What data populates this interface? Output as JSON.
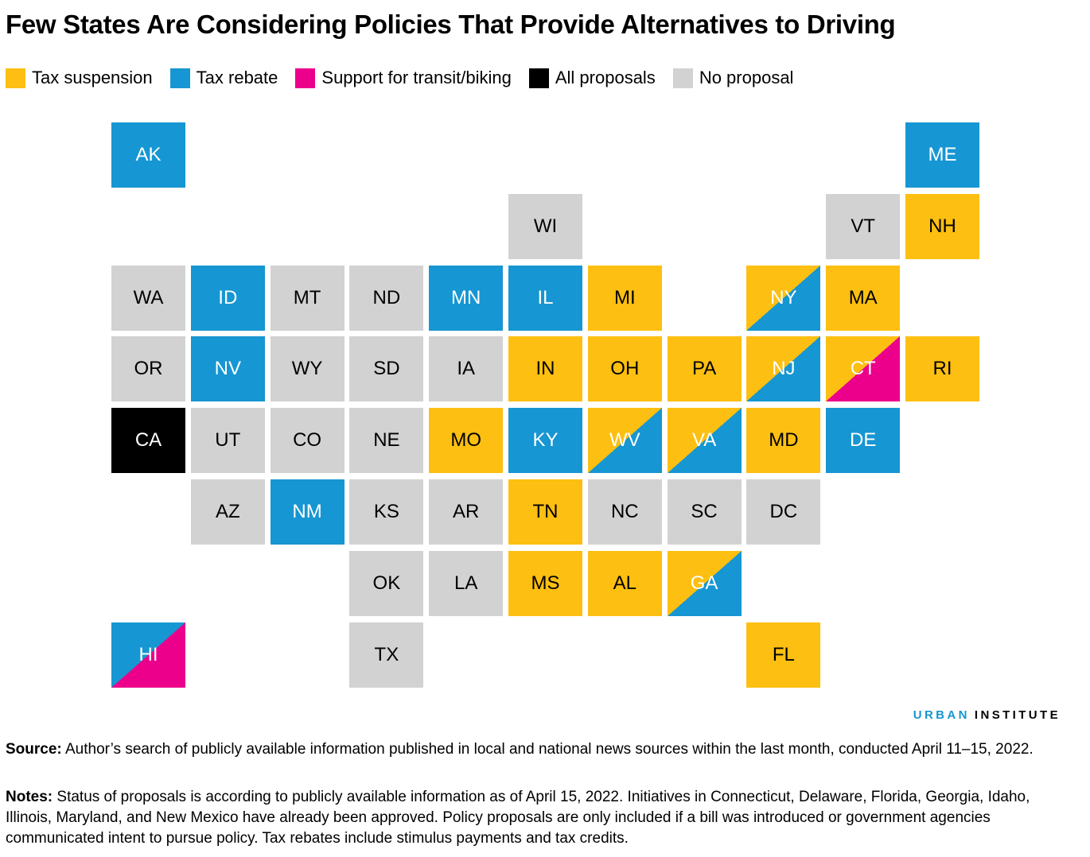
{
  "title": "Few States Are Considering Policies That Provide Alternatives to Driving",
  "colors": {
    "suspension": "#fdbf11",
    "rebate": "#1696d2",
    "transit": "#ec008b",
    "all": "#000000",
    "none": "#d2d2d2"
  },
  "legend": [
    {
      "key": "suspension",
      "label": "Tax suspension"
    },
    {
      "key": "rebate",
      "label": "Tax rebate"
    },
    {
      "key": "transit",
      "label": "Support for transit/biking"
    },
    {
      "key": "all",
      "label": "All proposals"
    },
    {
      "key": "none",
      "label": "No proposal"
    }
  ],
  "states": [
    {
      "abbr": "AK",
      "col": 0,
      "row": 0,
      "policies": [
        "rebate"
      ]
    },
    {
      "abbr": "ME",
      "col": 10,
      "row": 0,
      "policies": [
        "rebate"
      ]
    },
    {
      "abbr": "WI",
      "col": 5,
      "row": 1,
      "policies": [
        "none"
      ]
    },
    {
      "abbr": "VT",
      "col": 9,
      "row": 1,
      "policies": [
        "none"
      ]
    },
    {
      "abbr": "NH",
      "col": 10,
      "row": 1,
      "policies": [
        "suspension"
      ]
    },
    {
      "abbr": "WA",
      "col": 0,
      "row": 2,
      "policies": [
        "none"
      ]
    },
    {
      "abbr": "ID",
      "col": 1,
      "row": 2,
      "policies": [
        "rebate"
      ]
    },
    {
      "abbr": "MT",
      "col": 2,
      "row": 2,
      "policies": [
        "none"
      ]
    },
    {
      "abbr": "ND",
      "col": 3,
      "row": 2,
      "policies": [
        "none"
      ]
    },
    {
      "abbr": "MN",
      "col": 4,
      "row": 2,
      "policies": [
        "rebate"
      ]
    },
    {
      "abbr": "IL",
      "col": 5,
      "row": 2,
      "policies": [
        "rebate"
      ]
    },
    {
      "abbr": "MI",
      "col": 6,
      "row": 2,
      "policies": [
        "suspension"
      ]
    },
    {
      "abbr": "NY",
      "col": 8,
      "row": 2,
      "policies": [
        "suspension",
        "rebate"
      ]
    },
    {
      "abbr": "MA",
      "col": 9,
      "row": 2,
      "policies": [
        "suspension"
      ]
    },
    {
      "abbr": "OR",
      "col": 0,
      "row": 3,
      "policies": [
        "none"
      ]
    },
    {
      "abbr": "NV",
      "col": 1,
      "row": 3,
      "policies": [
        "rebate"
      ]
    },
    {
      "abbr": "WY",
      "col": 2,
      "row": 3,
      "policies": [
        "none"
      ]
    },
    {
      "abbr": "SD",
      "col": 3,
      "row": 3,
      "policies": [
        "none"
      ]
    },
    {
      "abbr": "IA",
      "col": 4,
      "row": 3,
      "policies": [
        "none"
      ]
    },
    {
      "abbr": "IN",
      "col": 5,
      "row": 3,
      "policies": [
        "suspension"
      ]
    },
    {
      "abbr": "OH",
      "col": 6,
      "row": 3,
      "policies": [
        "suspension"
      ]
    },
    {
      "abbr": "PA",
      "col": 7,
      "row": 3,
      "policies": [
        "suspension"
      ]
    },
    {
      "abbr": "NJ",
      "col": 8,
      "row": 3,
      "policies": [
        "suspension",
        "rebate"
      ]
    },
    {
      "abbr": "CT",
      "col": 9,
      "row": 3,
      "policies": [
        "suspension",
        "transit"
      ]
    },
    {
      "abbr": "RI",
      "col": 10,
      "row": 3,
      "policies": [
        "suspension"
      ]
    },
    {
      "abbr": "CA",
      "col": 0,
      "row": 4,
      "policies": [
        "all"
      ]
    },
    {
      "abbr": "UT",
      "col": 1,
      "row": 4,
      "policies": [
        "none"
      ]
    },
    {
      "abbr": "CO",
      "col": 2,
      "row": 4,
      "policies": [
        "none"
      ]
    },
    {
      "abbr": "NE",
      "col": 3,
      "row": 4,
      "policies": [
        "none"
      ]
    },
    {
      "abbr": "MO",
      "col": 4,
      "row": 4,
      "policies": [
        "suspension"
      ]
    },
    {
      "abbr": "KY",
      "col": 5,
      "row": 4,
      "policies": [
        "rebate"
      ]
    },
    {
      "abbr": "WV",
      "col": 6,
      "row": 4,
      "policies": [
        "suspension",
        "rebate"
      ]
    },
    {
      "abbr": "VA",
      "col": 7,
      "row": 4,
      "policies": [
        "suspension",
        "rebate"
      ]
    },
    {
      "abbr": "MD",
      "col": 8,
      "row": 4,
      "policies": [
        "suspension"
      ]
    },
    {
      "abbr": "DE",
      "col": 9,
      "row": 4,
      "policies": [
        "rebate"
      ]
    },
    {
      "abbr": "AZ",
      "col": 1,
      "row": 5,
      "policies": [
        "none"
      ]
    },
    {
      "abbr": "NM",
      "col": 2,
      "row": 5,
      "policies": [
        "rebate"
      ]
    },
    {
      "abbr": "KS",
      "col": 3,
      "row": 5,
      "policies": [
        "none"
      ]
    },
    {
      "abbr": "AR",
      "col": 4,
      "row": 5,
      "policies": [
        "none"
      ]
    },
    {
      "abbr": "TN",
      "col": 5,
      "row": 5,
      "policies": [
        "suspension"
      ]
    },
    {
      "abbr": "NC",
      "col": 6,
      "row": 5,
      "policies": [
        "none"
      ]
    },
    {
      "abbr": "SC",
      "col": 7,
      "row": 5,
      "policies": [
        "none"
      ]
    },
    {
      "abbr": "DC",
      "col": 8,
      "row": 5,
      "policies": [
        "none"
      ]
    },
    {
      "abbr": "OK",
      "col": 3,
      "row": 6,
      "policies": [
        "none"
      ]
    },
    {
      "abbr": "LA",
      "col": 4,
      "row": 6,
      "policies": [
        "none"
      ]
    },
    {
      "abbr": "MS",
      "col": 5,
      "row": 6,
      "policies": [
        "suspension"
      ]
    },
    {
      "abbr": "AL",
      "col": 6,
      "row": 6,
      "policies": [
        "suspension"
      ]
    },
    {
      "abbr": "GA",
      "col": 7,
      "row": 6,
      "policies": [
        "suspension",
        "rebate"
      ]
    },
    {
      "abbr": "HI",
      "col": 0,
      "row": 7,
      "policies": [
        "rebate",
        "transit"
      ]
    },
    {
      "abbr": "TX",
      "col": 3,
      "row": 7,
      "policies": [
        "none"
      ]
    },
    {
      "abbr": "FL",
      "col": 8,
      "row": 7,
      "policies": [
        "suspension"
      ]
    }
  ],
  "brand": {
    "part1": "URBAN",
    "part2": "INSTITUTE"
  },
  "source": {
    "label": "Source:",
    "text": "Author’s search of publicly available information published in local and national news sources within the last month, conducted April 11–15, 2022."
  },
  "notes": {
    "label": "Notes:",
    "text": "Status of proposals is according to publicly available information as of April 15, 2022. Initiatives in Connecticut, Delaware, Florida, Georgia, Idaho, Illinois, Maryland, and New Mexico have already been approved. Policy proposals are only included if a bill was introduced or government agencies communicated intent to pursue policy. Tax rebates include stimulus payments and tax credits."
  }
}
